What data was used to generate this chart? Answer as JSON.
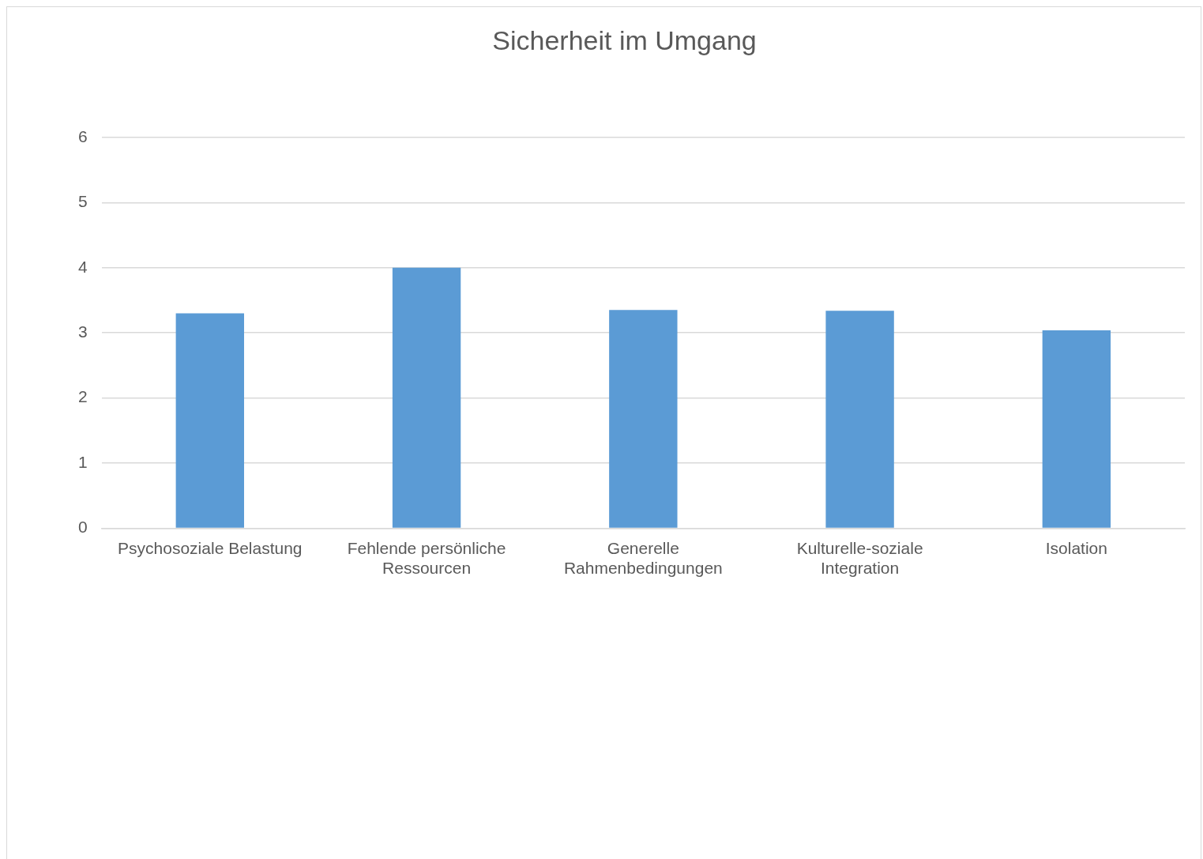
{
  "chart_data": {
    "type": "bar",
    "title": "Sicherheit im Umgang",
    "categories": [
      "Psychosoziale Belastung",
      "Fehlende persönliche Ressourcen",
      "Generelle Rahmenbedingungen",
      "Kulturelle-soziale Integration",
      "Isolation"
    ],
    "values": [
      3.3,
      4.0,
      3.35,
      3.34,
      3.04
    ],
    "color": "#5b9bd5",
    "ylim": [
      0,
      6
    ],
    "yticks": [
      0,
      1,
      2,
      3,
      4,
      5,
      6
    ],
    "grid": "y",
    "legend": false
  }
}
